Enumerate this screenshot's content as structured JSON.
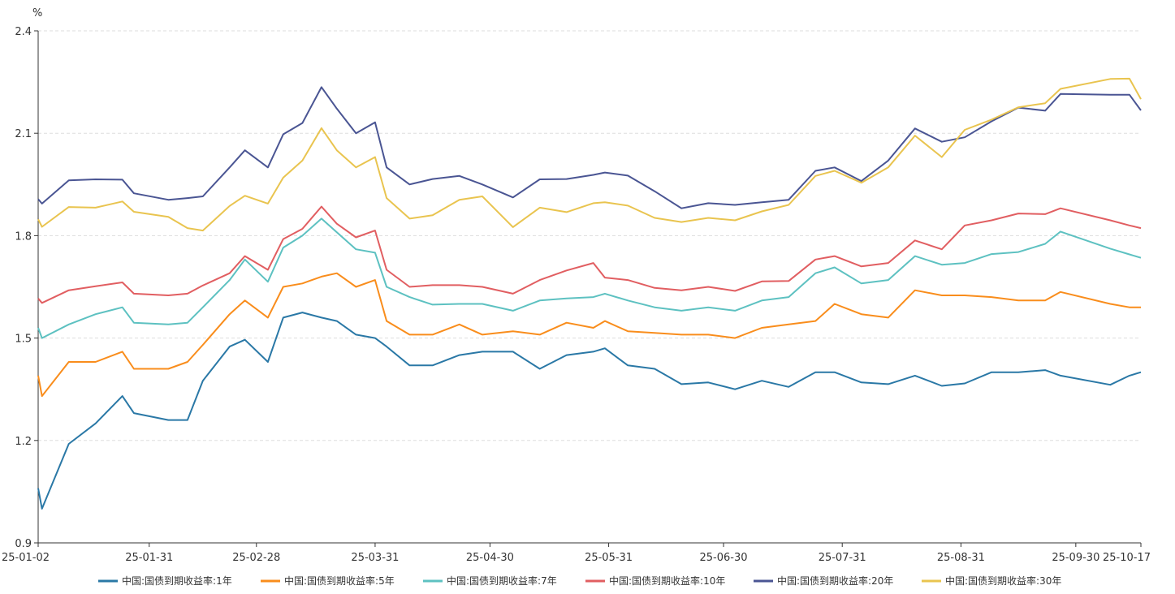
{
  "chart_data": {
    "type": "line",
    "title": "",
    "xlabel": "",
    "ylabel": "%",
    "ylim": [
      0.9,
      2.4
    ],
    "yticks": [
      "0.9",
      "1.2",
      "1.5",
      "1.8",
      "2.1",
      "2.4"
    ],
    "xlim": [
      "2025-01-02",
      "2025-10-17"
    ],
    "xticks": [
      "25-01-02",
      "25-01-31",
      "25-02-28",
      "25-03-31",
      "25-04-30",
      "25-05-31",
      "25-06-30",
      "25-07-31",
      "25-08-31",
      "25-09-30",
      "25-10-17"
    ],
    "grid": "horizontal dashed",
    "legend_position": "bottom",
    "x": [
      "2025-01-02",
      "2025-01-03",
      "2025-01-10",
      "2025-01-17",
      "2025-01-24",
      "2025-01-27",
      "2025-02-05",
      "2025-02-10",
      "2025-02-14",
      "2025-02-21",
      "2025-02-25",
      "2025-03-03",
      "2025-03-07",
      "2025-03-12",
      "2025-03-17",
      "2025-03-21",
      "2025-03-26",
      "2025-03-31",
      "2025-04-03",
      "2025-04-09",
      "2025-04-15",
      "2025-04-22",
      "2025-04-28",
      "2025-05-06",
      "2025-05-13",
      "2025-05-20",
      "2025-05-27",
      "2025-05-30",
      "2025-06-05",
      "2025-06-12",
      "2025-06-19",
      "2025-06-26",
      "2025-07-03",
      "2025-07-10",
      "2025-07-17",
      "2025-07-24",
      "2025-07-29",
      "2025-08-05",
      "2025-08-12",
      "2025-08-19",
      "2025-08-26",
      "2025-09-01",
      "2025-09-08",
      "2025-09-15",
      "2025-09-22",
      "2025-09-26",
      "2025-10-09",
      "2025-10-14",
      "2025-10-17"
    ],
    "series": [
      {
        "name": "中国:国债到期收益率:1年",
        "color": "#2a78a6",
        "values": [
          1.06,
          1.0,
          1.19,
          1.25,
          1.33,
          1.28,
          1.26,
          1.26,
          1.375,
          1.475,
          1.495,
          1.43,
          1.56,
          1.575,
          1.56,
          1.55,
          1.51,
          1.5,
          1.475,
          1.42,
          1.42,
          1.45,
          1.46,
          1.46,
          1.41,
          1.45,
          1.46,
          1.47,
          1.42,
          1.41,
          1.365,
          1.37,
          1.35,
          1.375,
          1.357,
          1.4,
          1.4,
          1.37,
          1.365,
          1.39,
          1.36,
          1.367,
          1.4,
          1.4,
          1.406,
          1.39,
          1.363,
          1.39,
          1.4
        ]
      },
      {
        "name": "中国:国债到期收益率:5年",
        "color": "#f98d1c",
        "values": [
          1.39,
          1.33,
          1.43,
          1.43,
          1.46,
          1.41,
          1.41,
          1.43,
          1.48,
          1.57,
          1.61,
          1.56,
          1.65,
          1.66,
          1.68,
          1.69,
          1.65,
          1.67,
          1.55,
          1.51,
          1.51,
          1.54,
          1.51,
          1.52,
          1.51,
          1.545,
          1.53,
          1.55,
          1.52,
          1.515,
          1.51,
          1.51,
          1.5,
          1.53,
          1.54,
          1.55,
          1.6,
          1.57,
          1.56,
          1.64,
          1.625,
          1.625,
          1.62,
          1.61,
          1.61,
          1.635,
          1.6,
          1.59,
          1.59
        ]
      },
      {
        "name": "中国:国债到期收益率:7年",
        "color": "#5dc1c1",
        "values": [
          1.53,
          1.5,
          1.54,
          1.57,
          1.59,
          1.545,
          1.54,
          1.545,
          1.59,
          1.67,
          1.73,
          1.665,
          1.765,
          1.8,
          1.85,
          1.81,
          1.76,
          1.75,
          1.65,
          1.62,
          1.598,
          1.6,
          1.6,
          1.58,
          1.61,
          1.616,
          1.62,
          1.63,
          1.61,
          1.59,
          1.58,
          1.59,
          1.58,
          1.61,
          1.62,
          1.69,
          1.707,
          1.66,
          1.67,
          1.74,
          1.715,
          1.72,
          1.746,
          1.752,
          1.776,
          1.812,
          1.762,
          1.745,
          1.735
        ]
      },
      {
        "name": "中国:国债到期收益率:10年",
        "color": "#e15e61",
        "values": [
          1.616,
          1.603,
          1.64,
          1.652,
          1.663,
          1.63,
          1.625,
          1.63,
          1.654,
          1.69,
          1.74,
          1.7,
          1.79,
          1.82,
          1.885,
          1.835,
          1.795,
          1.815,
          1.7,
          1.65,
          1.655,
          1.655,
          1.65,
          1.63,
          1.67,
          1.698,
          1.72,
          1.677,
          1.67,
          1.647,
          1.64,
          1.65,
          1.638,
          1.666,
          1.667,
          1.73,
          1.74,
          1.71,
          1.72,
          1.786,
          1.76,
          1.83,
          1.845,
          1.865,
          1.863,
          1.88,
          1.845,
          1.83,
          1.822
        ]
      },
      {
        "name": "中国:国债到期收益率:20年",
        "color": "#4a5593",
        "values": [
          1.907,
          1.894,
          1.962,
          1.965,
          1.964,
          1.924,
          1.905,
          1.91,
          1.915,
          2.0,
          2.05,
          2.0,
          2.097,
          2.13,
          2.235,
          2.172,
          2.1,
          2.132,
          2.0,
          1.95,
          1.966,
          1.975,
          1.95,
          1.912,
          1.965,
          1.966,
          1.978,
          1.985,
          1.976,
          1.93,
          1.88,
          1.895,
          1.89,
          1.898,
          1.905,
          1.99,
          2.0,
          1.96,
          2.02,
          2.114,
          2.075,
          2.088,
          2.135,
          2.175,
          2.166,
          2.215,
          2.213,
          2.213,
          2.167
        ]
      },
      {
        "name": "中国:国债到期收益率:30年",
        "color": "#e9c44f",
        "values": [
          1.848,
          1.826,
          1.884,
          1.882,
          1.9,
          1.87,
          1.855,
          1.822,
          1.815,
          1.887,
          1.917,
          1.894,
          1.97,
          2.02,
          2.115,
          2.05,
          2.0,
          2.03,
          1.91,
          1.85,
          1.86,
          1.905,
          1.915,
          1.825,
          1.882,
          1.869,
          1.895,
          1.898,
          1.888,
          1.852,
          1.84,
          1.852,
          1.845,
          1.871,
          1.89,
          1.975,
          1.99,
          1.955,
          2.0,
          2.093,
          2.03,
          2.11,
          2.14,
          2.176,
          2.188,
          2.23,
          2.259,
          2.26,
          2.2
        ]
      }
    ]
  }
}
